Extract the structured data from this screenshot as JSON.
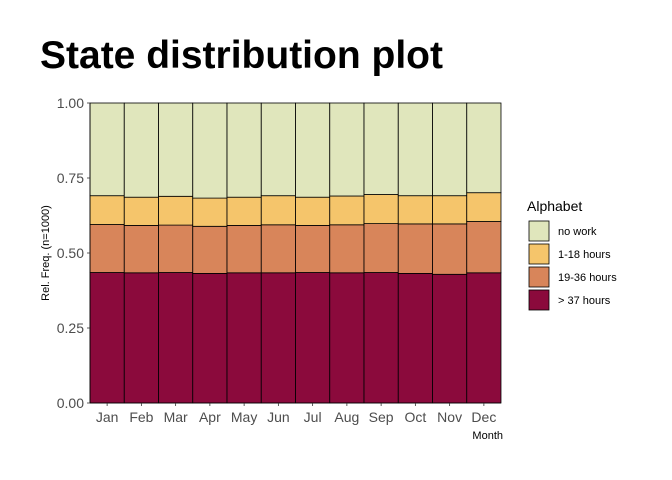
{
  "chart_data": {
    "type": "bar",
    "stacked": true,
    "title": "State distribution plot",
    "xlabel": "Month",
    "ylabel": "Rel. Freq. (n=1000)",
    "ylim": [
      0,
      1
    ],
    "yticks": [
      "0.00",
      "0.25",
      "0.50",
      "0.75",
      "1.00"
    ],
    "grid": false,
    "legend_title": "Alphabet",
    "legend_position": "right",
    "categories": [
      "Jan",
      "Feb",
      "Mar",
      "Apr",
      "May",
      "Jun",
      "Jul",
      "Aug",
      "Sep",
      "Oct",
      "Nov",
      "Dec"
    ],
    "series": [
      {
        "name": "> 37 hours",
        "color": "#8b0a3c",
        "values": [
          0.435,
          0.434,
          0.435,
          0.432,
          0.434,
          0.434,
          0.435,
          0.434,
          0.435,
          0.432,
          0.429,
          0.434
        ]
      },
      {
        "name": "19-36 hours",
        "color": "#d8855a",
        "values": [
          0.16,
          0.158,
          0.158,
          0.157,
          0.158,
          0.16,
          0.157,
          0.16,
          0.163,
          0.165,
          0.168,
          0.171
        ]
      },
      {
        "name": "1-18 hours",
        "color": "#f5c56b",
        "values": [
          0.096,
          0.094,
          0.096,
          0.094,
          0.094,
          0.097,
          0.094,
          0.096,
          0.097,
          0.094,
          0.094,
          0.096
        ]
      },
      {
        "name": "no work",
        "color": "#e0e6bc",
        "values": [
          0.309,
          0.314,
          0.311,
          0.317,
          0.314,
          0.309,
          0.314,
          0.31,
          0.305,
          0.309,
          0.309,
          0.299
        ]
      }
    ],
    "legend_order": [
      "no work",
      "1-18 hours",
      "19-36 hours",
      "> 37 hours"
    ]
  }
}
